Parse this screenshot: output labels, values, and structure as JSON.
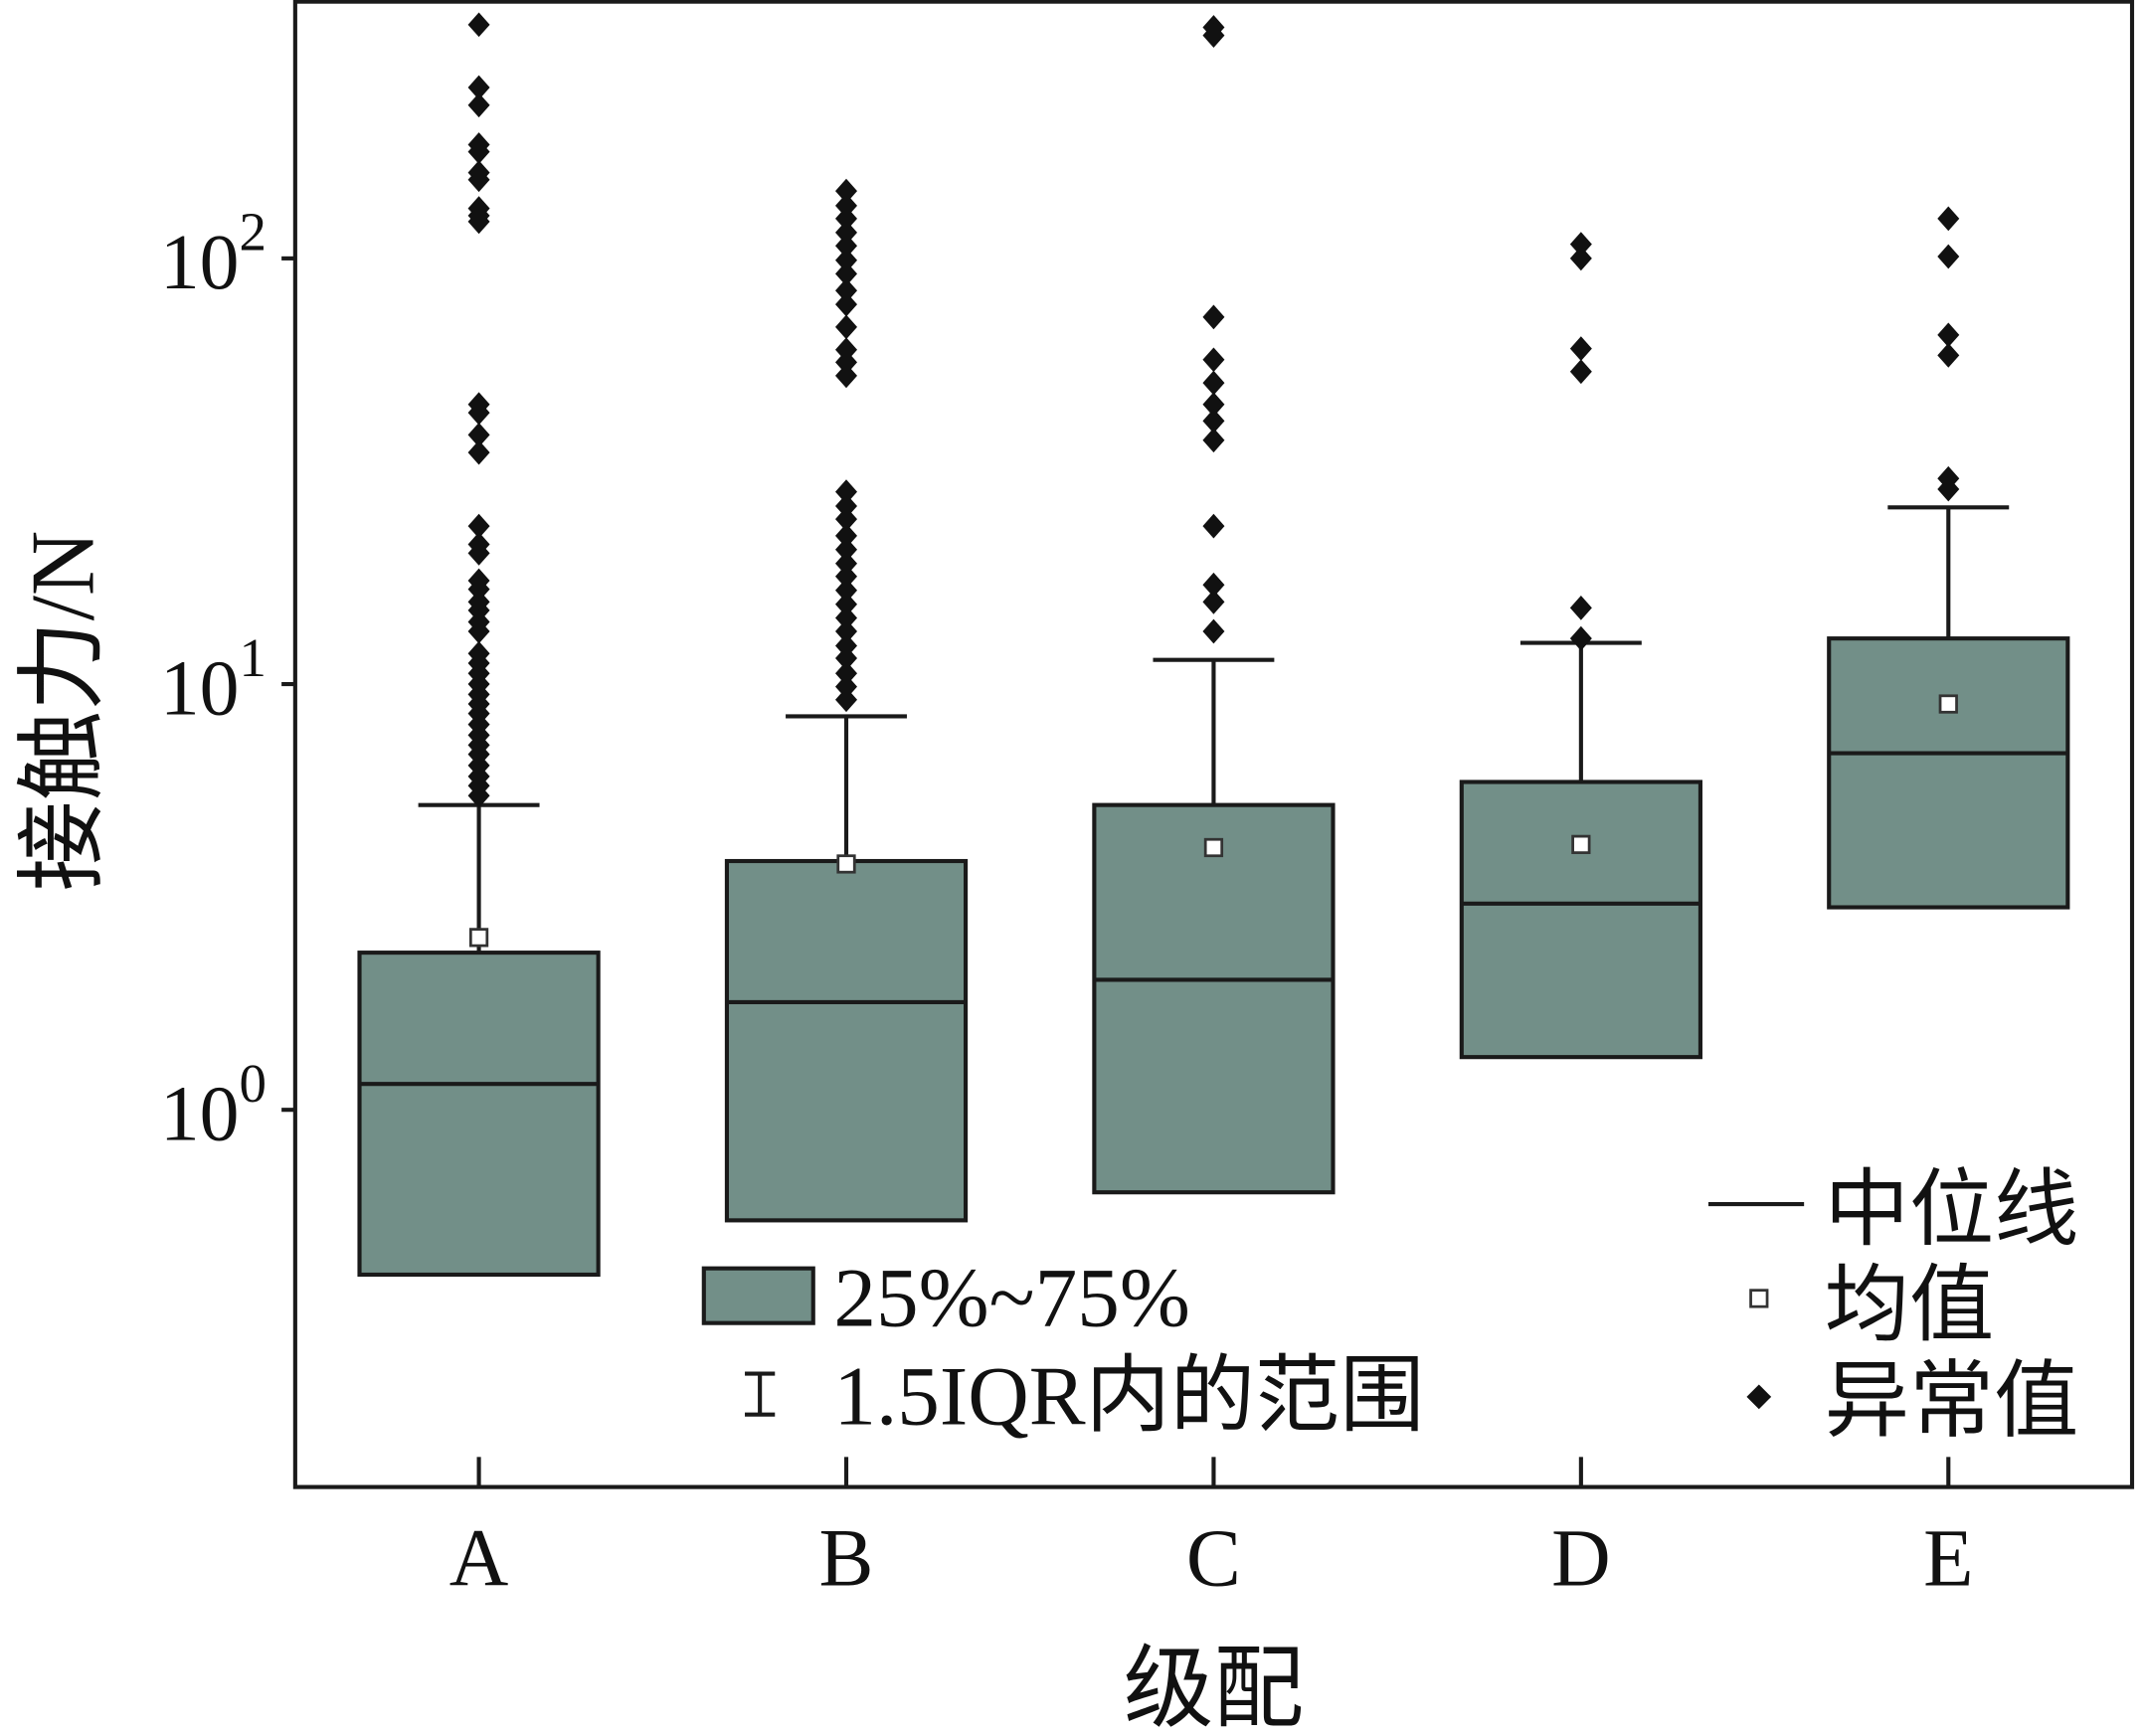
{
  "chart_data": {
    "type": "box",
    "xlabel": "级配",
    "ylabel": "接触力/N",
    "yscale": "log",
    "ylim": [
      0.13,
      398
    ],
    "grid": false,
    "yticks": [
      {
        "value": 1,
        "base": "10",
        "exp": "0"
      },
      {
        "value": 10,
        "base": "10",
        "exp": "1"
      },
      {
        "value": 100,
        "base": "10",
        "exp": "2"
      }
    ],
    "categories": [
      "A",
      "B",
      "C",
      "D",
      "E"
    ],
    "boxes": [
      {
        "category": "A",
        "q1": 0.41,
        "median": 1.15,
        "q3": 2.34,
        "mean": 2.54,
        "whisker_high": 5.2,
        "outliers": [
          354,
          252,
          229,
          185,
          178,
          159,
          153,
          131,
          126,
          122,
          45.4,
          43.4,
          38.5,
          35.0,
          23.5,
          21.3,
          20.3,
          17.5,
          16.7,
          15.6,
          14.9,
          14.0,
          13.3,
          11.8,
          11.2,
          10.6,
          10.0,
          9.46,
          8.98,
          8.53,
          8.04,
          7.59,
          7.19,
          6.84,
          6.44,
          6.07,
          5.77,
          5.47
        ]
      },
      {
        "category": "B",
        "q1": 0.55,
        "median": 1.79,
        "q3": 3.84,
        "mean": 3.78,
        "whisker_high": 8.4,
        "outliers": [
          144,
          133,
          124,
          115,
          107,
          99,
          92,
          84,
          78,
          69,
          61,
          57,
          53,
          28.3,
          26.2,
          24.4,
          22.3,
          20.7,
          19.2,
          17.9,
          16.6,
          15.4,
          14.3,
          13.3,
          12.3,
          11.5,
          10.6,
          9.86,
          9.19
        ]
      },
      {
        "category": "C",
        "q1": 0.64,
        "median": 2.02,
        "q3": 5.2,
        "mean": 4.13,
        "whisker_high": 11.4,
        "outliers": [
          349,
          334,
          72.8,
          57.8,
          51.0,
          45.4,
          41.5,
          37.4,
          23.5,
          17.1,
          15.6,
          13.3
        ]
      },
      {
        "category": "D",
        "q1": 1.33,
        "median": 3.05,
        "q3": 5.89,
        "mean": 4.2,
        "whisker_high": 12.5,
        "outliers": [
          108,
          100,
          61.4,
          54.2,
          15.1,
          12.8
        ]
      },
      {
        "category": "E",
        "q1": 2.99,
        "median": 6.88,
        "q3": 12.8,
        "mean": 8.98,
        "whisker_high": 26.0,
        "outliers": [
          124,
          101,
          66.1,
          59.2,
          30.4,
          28.7
        ]
      }
    ],
    "legend": {
      "placement": "bottom",
      "items": [
        {
          "label": "25%~75%",
          "marker": "box"
        },
        {
          "label": "1.5IQR内的范围",
          "marker": "whisker"
        },
        {
          "label": "中位线",
          "marker": "line"
        },
        {
          "label": "均值",
          "marker": "square"
        },
        {
          "label": "异常值",
          "marker": "diamond"
        }
      ]
    },
    "colors": {
      "box_fill": "#728f88",
      "stroke": "#1a1a1a",
      "mean_fill": "#ffffff",
      "outlier": "#111111"
    }
  }
}
